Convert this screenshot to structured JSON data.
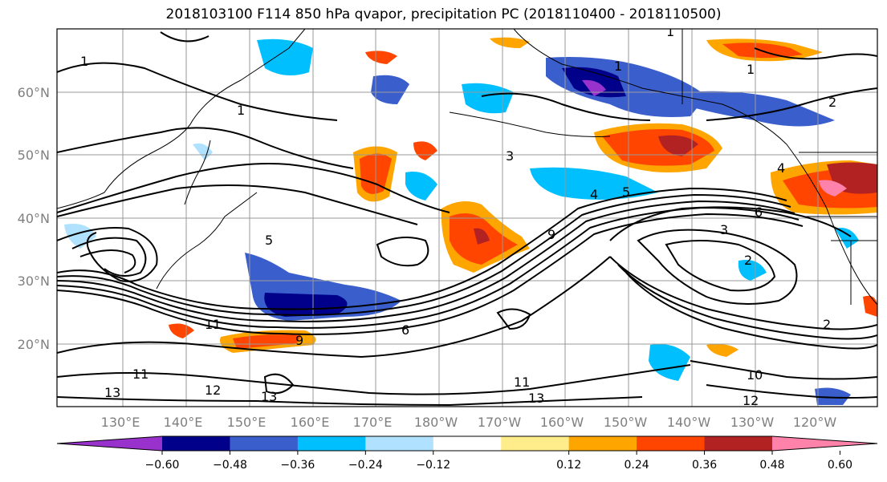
{
  "title": "2018103100 F114 850 hPa qvapor, precipitation PC (2018110400 - 2018110500)",
  "map": {
    "lat_labels": [
      "60°N",
      "50°N",
      "40°N",
      "30°N",
      "20°N"
    ],
    "lon_labels": [
      "130°E",
      "140°E",
      "150°E",
      "160°E",
      "170°E",
      "180°W",
      "170°W",
      "160°W",
      "150°W",
      "140°W",
      "130°W",
      "120°W"
    ],
    "contour_labels": [
      "1",
      "1",
      "1",
      "1",
      "1",
      "2",
      "2",
      "2",
      "3",
      "3",
      "4",
      "4",
      "5",
      "5",
      "6",
      "6",
      "9",
      "9",
      "10",
      "11",
      "11",
      "11",
      "12",
      "12",
      "13",
      "13",
      "13"
    ]
  },
  "colorbar": {
    "ticks": [
      "−0.60",
      "−0.48",
      "−0.36",
      "−0.24",
      "−0.12",
      "0.12",
      "0.24",
      "0.36",
      "0.48",
      "0.60"
    ],
    "colors": [
      "#9932cc",
      "#00008b",
      "#3a5fcd",
      "#00bfff",
      "#b0e2ff",
      "#ffffff",
      "#ffec8b",
      "#ffa500",
      "#ff4500",
      "#b22222",
      "#ff82ab"
    ]
  }
}
